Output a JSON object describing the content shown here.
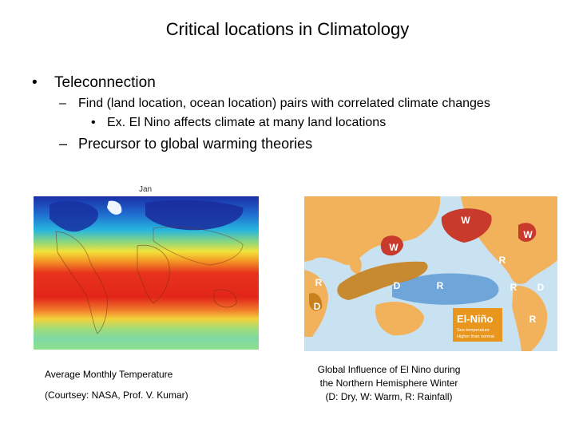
{
  "slide": {
    "title": "Critical locations in Climatology",
    "bullets": [
      {
        "mark": "•",
        "text": "Teleconnection"
      },
      {
        "mark": "–",
        "text": "Find (land location, ocean location) pairs with correlated climate changes"
      },
      {
        "mark": "•",
        "text": "Ex. El Nino affects climate at many land locations"
      },
      {
        "mark": "–",
        "text": "Precursor to global warming theories"
      }
    ]
  },
  "left_figure": {
    "label": "Jan",
    "caption_line1": "Average Monthly Temperature",
    "caption_line2": "(Courtsey: NASA, Prof. V. Kumar)"
  },
  "right_figure": {
    "markers": [
      "W",
      "W",
      "W",
      "R",
      "R",
      "D",
      "D",
      "R",
      "R",
      "D",
      "R"
    ],
    "legend_title": "El-Niño",
    "legend_line1": "Sea temperature",
    "legend_line2": "Higher than normal",
    "caption_line1": "Global Influence of El Nino during",
    "caption_line2": "the Northern Hemisphere Winter",
    "caption_line3": "(D: Dry, W: Warm, R: Rainfall)"
  },
  "colors": {
    "ocean": "#c9e2f1",
    "land": "#f2b25c",
    "warm": "#c73a2c",
    "dry": "#c8811c",
    "rain": "#5e9bd6",
    "legend_box": "#e8961e"
  }
}
